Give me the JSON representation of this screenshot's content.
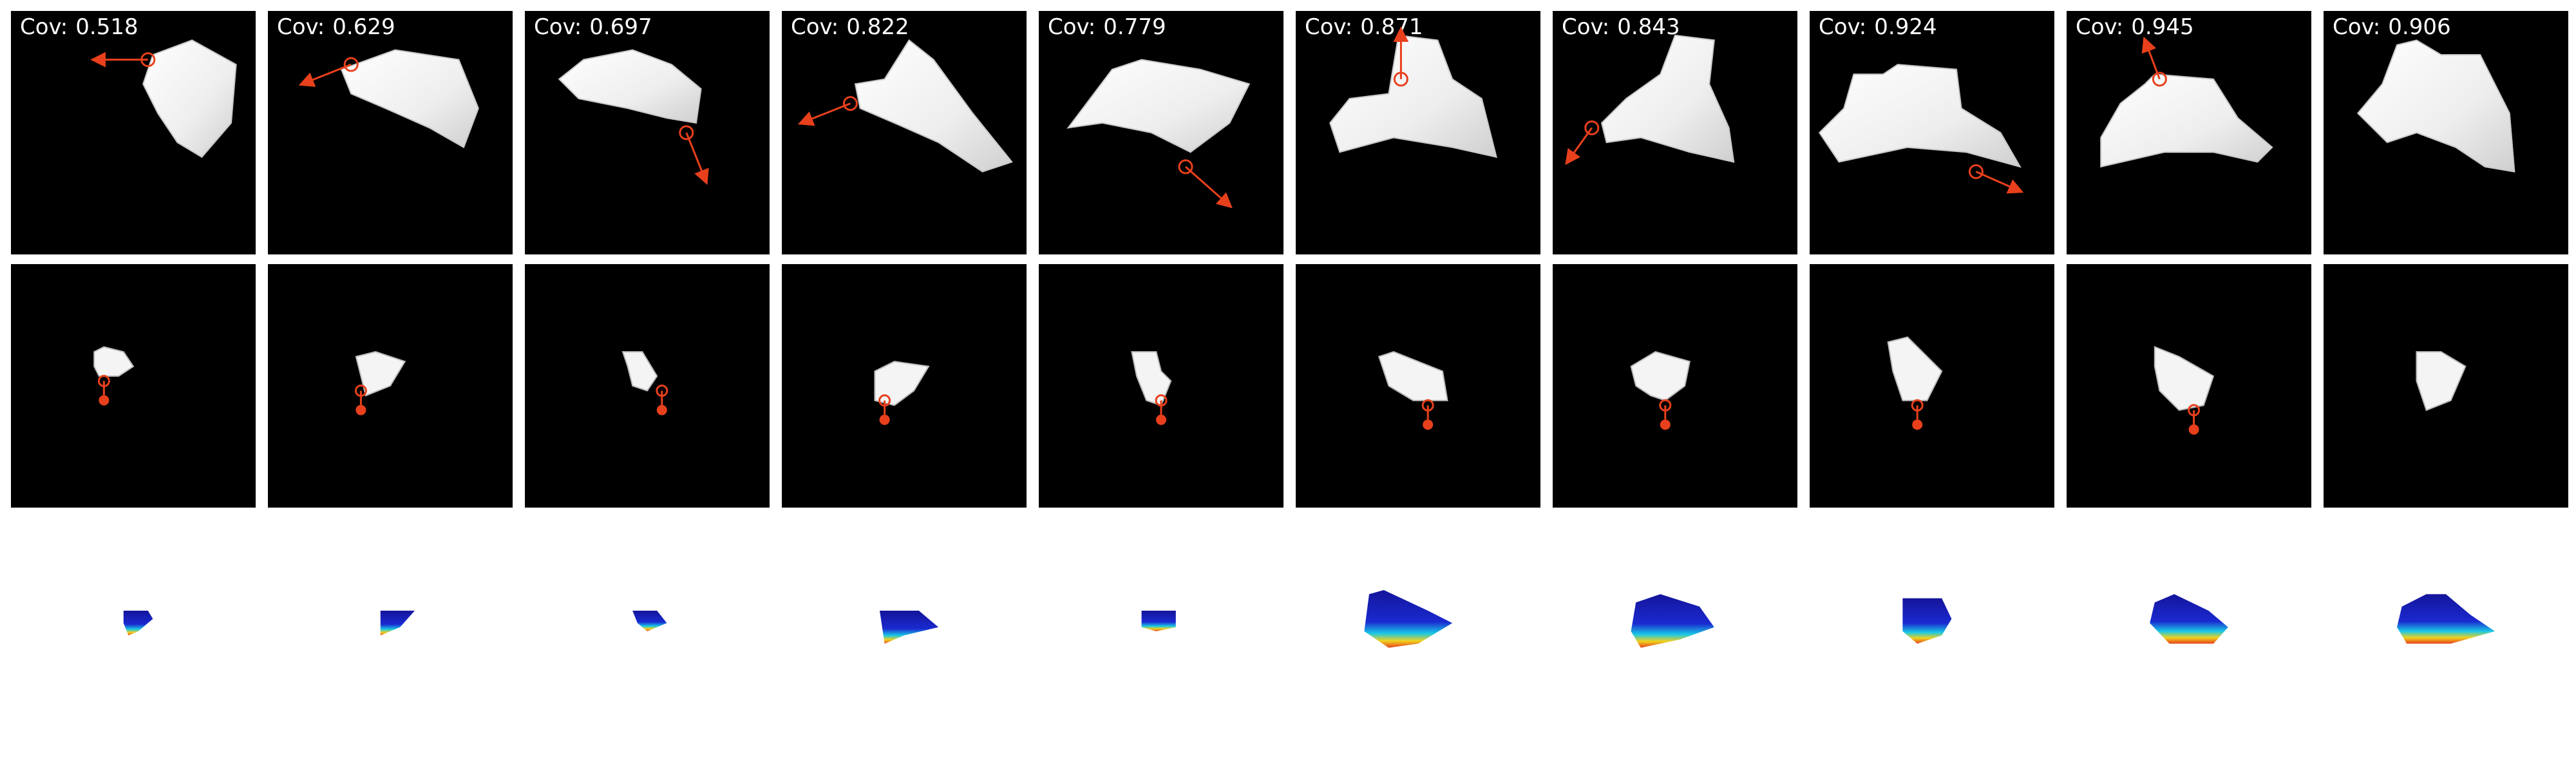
{
  "columns": [
    {
      "cov_label": "Cov:",
      "cov_value": "0.518"
    },
    {
      "cov_label": "Cov:",
      "cov_value": "0.629"
    },
    {
      "cov_label": "Cov:",
      "cov_value": "0.697"
    },
    {
      "cov_label": "Cov:",
      "cov_value": "0.822"
    },
    {
      "cov_label": "Cov:",
      "cov_value": "0.779"
    },
    {
      "cov_label": "Cov:",
      "cov_value": "0.871"
    },
    {
      "cov_label": "Cov:",
      "cov_value": "0.843"
    },
    {
      "cov_label": "Cov:",
      "cov_value": "0.924"
    },
    {
      "cov_label": "Cov:",
      "cov_value": "0.945"
    },
    {
      "cov_label": "Cov:",
      "cov_value": "0.906"
    }
  ],
  "colors": {
    "panel_background": "#000000",
    "cloth": "#f2f2f2",
    "cloth_shadow": "#c8c8c8",
    "action_arrow": "#e8401c",
    "figure_background": "#ffffff",
    "heatmap_low": "#1a1ab4",
    "heatmap_mid": "#19c8e6",
    "heatmap_high": "#f0d21e",
    "heatmap_peak": "#e8401c"
  }
}
